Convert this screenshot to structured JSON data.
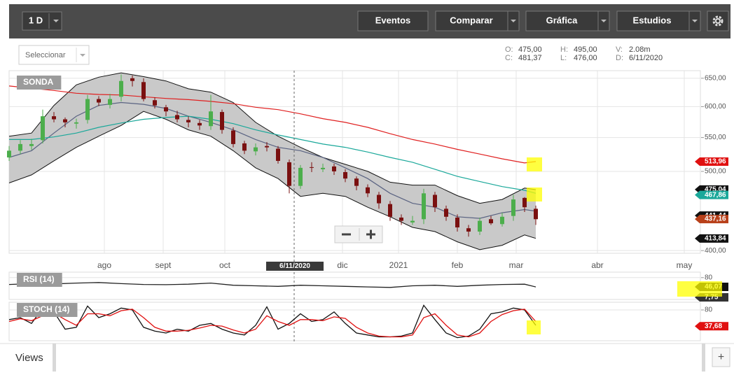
{
  "toolbar": {
    "interval": "1 D",
    "buttons": [
      "Eventos",
      "Comparar",
      "Gráfica",
      "Estudios"
    ],
    "selector": "Seleccionar"
  },
  "quote": [
    {
      "label": "O:",
      "value": "475,00"
    },
    {
      "label": "H:",
      "value": "495,00"
    },
    {
      "label": "V:",
      "value": "2.08m"
    },
    {
      "label": "C:",
      "value": "481,37"
    },
    {
      "label": "L:",
      "value": "476,00"
    },
    {
      "label": "D:",
      "value": "6/11/2020"
    }
  ],
  "chart_data": [
    {
      "type": "candlestick",
      "title": "SONDA",
      "log_scale": true,
      "grid": true,
      "crosshair_label": "6/11/2020",
      "color_up": "#4cae4c",
      "color_down": "#7a1010",
      "xlim": [
        0,
        247
      ],
      "ylim": [
        397,
        664
      ],
      "xticks": [
        {
          "value": 34,
          "label": "ago"
        },
        {
          "value": 55,
          "label": "sept"
        },
        {
          "value": 77,
          "label": "oct"
        },
        {
          "value": 119,
          "label": "dic"
        },
        {
          "value": 139,
          "label": "2021"
        },
        {
          "value": 160,
          "label": "feb"
        },
        {
          "value": 181,
          "label": "mar"
        },
        {
          "value": 210,
          "label": "abr"
        },
        {
          "value": 241,
          "label": "may"
        }
      ],
      "yticks": [
        {
          "value": 650,
          "label": "650,00"
        },
        {
          "value": 600,
          "label": "600,00"
        },
        {
          "value": 550,
          "label": "550,00"
        },
        {
          "value": 500,
          "label": "500,00"
        },
        {
          "value": 400,
          "label": "400,00"
        }
      ],
      "x": [
        0,
        4,
        8,
        12,
        16,
        20,
        24,
        28,
        32,
        36,
        40,
        44,
        48,
        52,
        56,
        60,
        64,
        68,
        72,
        76,
        80,
        84,
        88,
        92,
        96,
        100,
        104,
        108,
        112,
        116,
        120,
        124,
        128,
        132,
        136,
        140,
        144,
        148,
        152,
        156,
        160,
        164,
        168,
        172,
        176,
        180,
        184,
        188
      ],
      "open": [
        520,
        530,
        537,
        546,
        584,
        579,
        572,
        578,
        613,
        603,
        617,
        650,
        643,
        611,
        599,
        586,
        578,
        573,
        568,
        591,
        561,
        541,
        529,
        537,
        533,
        513,
        480,
        506,
        503,
        507,
        499,
        490,
        478,
        468,
        456,
        439,
        433,
        437,
        468,
        450,
        439,
        426,
        422,
        437,
        431,
        441,
        464,
        450
      ],
      "high": [
        537,
        546,
        548,
        595,
        591,
        582,
        580,
        620,
        618,
        622,
        657,
        655,
        650,
        616,
        603,
        593,
        584,
        578,
        620,
        595,
        566,
        545,
        541,
        543,
        537,
        517,
        509,
        513,
        511,
        511,
        503,
        493,
        482,
        472,
        460,
        443,
        441,
        476,
        472,
        454,
        443,
        430,
        439,
        441,
        445,
        468,
        465,
        454
      ],
      "low": [
        515,
        525,
        531,
        541,
        574,
        566,
        564,
        572,
        601,
        597,
        609,
        635,
        609,
        597,
        584,
        574,
        566,
        562,
        562,
        556,
        535,
        525,
        523,
        529,
        511,
        470,
        476,
        499,
        499,
        495,
        485,
        474,
        465,
        450,
        435,
        430,
        430,
        431,
        446,
        435,
        422,
        416,
        418,
        430,
        428,
        435,
        446,
        430
      ],
      "close": [
        530,
        540,
        540,
        584,
        579,
        574,
        574,
        613,
        607,
        613,
        645,
        645,
        613,
        602,
        592,
        579,
        574,
        569,
        592,
        562,
        540,
        530,
        535,
        535,
        515,
        480,
        505,
        505,
        505,
        500,
        490,
        480,
        470,
        457,
        440,
        435,
        435,
        470,
        452,
        440,
        427,
        422,
        435,
        432,
        440,
        462,
        452,
        437
      ],
      "overlay_x": [
        0,
        8,
        16,
        24,
        32,
        40,
        48,
        56,
        64,
        72,
        80,
        88,
        96,
        104,
        112,
        120,
        128,
        136,
        144,
        152,
        160,
        168,
        176,
        184,
        188
      ],
      "band": {
        "fill": "#c9c9c9",
        "color": "#111",
        "upper": [
          552,
          557,
          602,
          638,
          652,
          660,
          653,
          645,
          631,
          625,
          607,
          574,
          552,
          535,
          520,
          510,
          500,
          485,
          481,
          481,
          467,
          457,
          462,
          477,
          475
        ],
        "lower": [
          484,
          495,
          515,
          535,
          552,
          569,
          592,
          579,
          562,
          552,
          530,
          505,
          490,
          466,
          470,
          466,
          452,
          440,
          427,
          422,
          410,
          401,
          406,
          418,
          414
        ]
      },
      "lines": [
        {
          "color": "#5a6382",
          "values": [
            520,
            530,
            557,
            584,
            602,
            607,
            604,
            597,
            584,
            574,
            562,
            547,
            535,
            530,
            520,
            505,
            490,
            470,
            457,
            452,
            440,
            438,
            445,
            449,
            447
          ]
        },
        {
          "color": "#e02020",
          "values": [
            636,
            632,
            628,
            623,
            621,
            620,
            617,
            614,
            612,
            609,
            605,
            599,
            595,
            588,
            580,
            574,
            566,
            556,
            547,
            540,
            532,
            525,
            518,
            512,
            514
          ]
        },
        {
          "color": "#1aa89a",
          "values": [
            547,
            547,
            551,
            557,
            566,
            573,
            579,
            582,
            584,
            579,
            572,
            562,
            554,
            547,
            540,
            535,
            528,
            520,
            513,
            503,
            493,
            486,
            479,
            474,
            470
          ]
        }
      ],
      "tags": [
        {
          "value": 513.96,
          "label": "513,96",
          "color": "#e01010"
        },
        {
          "value": 475.04,
          "label": "475,04",
          "color": "#111"
        },
        {
          "value": 467.86,
          "label": "467,86",
          "color": "#1aa89a"
        },
        {
          "value": 441.44,
          "label": "441,44",
          "color": "#111"
        },
        {
          "value": 437.16,
          "label": "437,16",
          "color": "#b8401a"
        },
        {
          "value": 413.84,
          "label": "413,84",
          "color": "#111"
        }
      ]
    },
    {
      "type": "line",
      "title": "RSI (14)",
      "xlim": [
        0,
        247
      ],
      "ylim": [
        0,
        100
      ],
      "yticks": [
        80
      ],
      "x": [
        0,
        8,
        16,
        24,
        32,
        40,
        48,
        56,
        64,
        72,
        80,
        88,
        96,
        104,
        112,
        120,
        128,
        136,
        144,
        152,
        160,
        168,
        176,
        184,
        188
      ],
      "series": [
        {
          "color": "#222",
          "values": [
            55,
            58,
            57,
            60,
            62,
            58,
            55,
            54,
            56,
            60,
            52,
            50,
            48,
            52,
            50,
            48,
            46,
            44,
            50,
            52,
            48,
            52,
            55,
            56,
            46
          ]
        }
      ],
      "tags": [
        {
          "value": 46.07,
          "label": "46,07",
          "color": "#111"
        },
        {
          "value": 7.75,
          "label": "7,75",
          "color": "#333"
        }
      ]
    },
    {
      "type": "line",
      "title": "STOCH (14)",
      "xlim": [
        0,
        247
      ],
      "ylim": [
        0,
        100
      ],
      "yticks": [
        80
      ],
      "x": [
        0,
        4,
        8,
        12,
        16,
        20,
        24,
        28,
        32,
        36,
        40,
        44,
        48,
        52,
        56,
        60,
        64,
        68,
        72,
        76,
        80,
        84,
        88,
        92,
        96,
        100,
        104,
        108,
        112,
        116,
        120,
        124,
        128,
        132,
        136,
        140,
        144,
        148,
        152,
        156,
        160,
        164,
        168,
        172,
        176,
        180,
        184,
        188
      ],
      "series": [
        {
          "color": "#111",
          "values": [
            55,
            60,
            45,
            85,
            75,
            30,
            35,
            90,
            60,
            70,
            85,
            80,
            35,
            25,
            20,
            30,
            25,
            40,
            45,
            30,
            20,
            15,
            40,
            88,
            30,
            45,
            70,
            50,
            55,
            75,
            45,
            20,
            15,
            10,
            10,
            12,
            20,
            92,
            55,
            20,
            8,
            12,
            30,
            70,
            75,
            85,
            80,
            40
          ]
        },
        {
          "color": "#e01010",
          "values": [
            50,
            57,
            52,
            65,
            72,
            55,
            40,
            70,
            70,
            65,
            78,
            82,
            60,
            35,
            25,
            25,
            27,
            33,
            40,
            38,
            28,
            20,
            30,
            65,
            50,
            40,
            55,
            55,
            52,
            62,
            58,
            35,
            20,
            12,
            10,
            10,
            15,
            60,
            70,
            40,
            15,
            10,
            20,
            50,
            68,
            78,
            82,
            50
          ]
        }
      ],
      "tags": [
        {
          "value": 37.68,
          "label": "37,68",
          "color": "#e01010"
        }
      ]
    }
  ],
  "footer": {
    "tab": "Views",
    "add": "+"
  }
}
